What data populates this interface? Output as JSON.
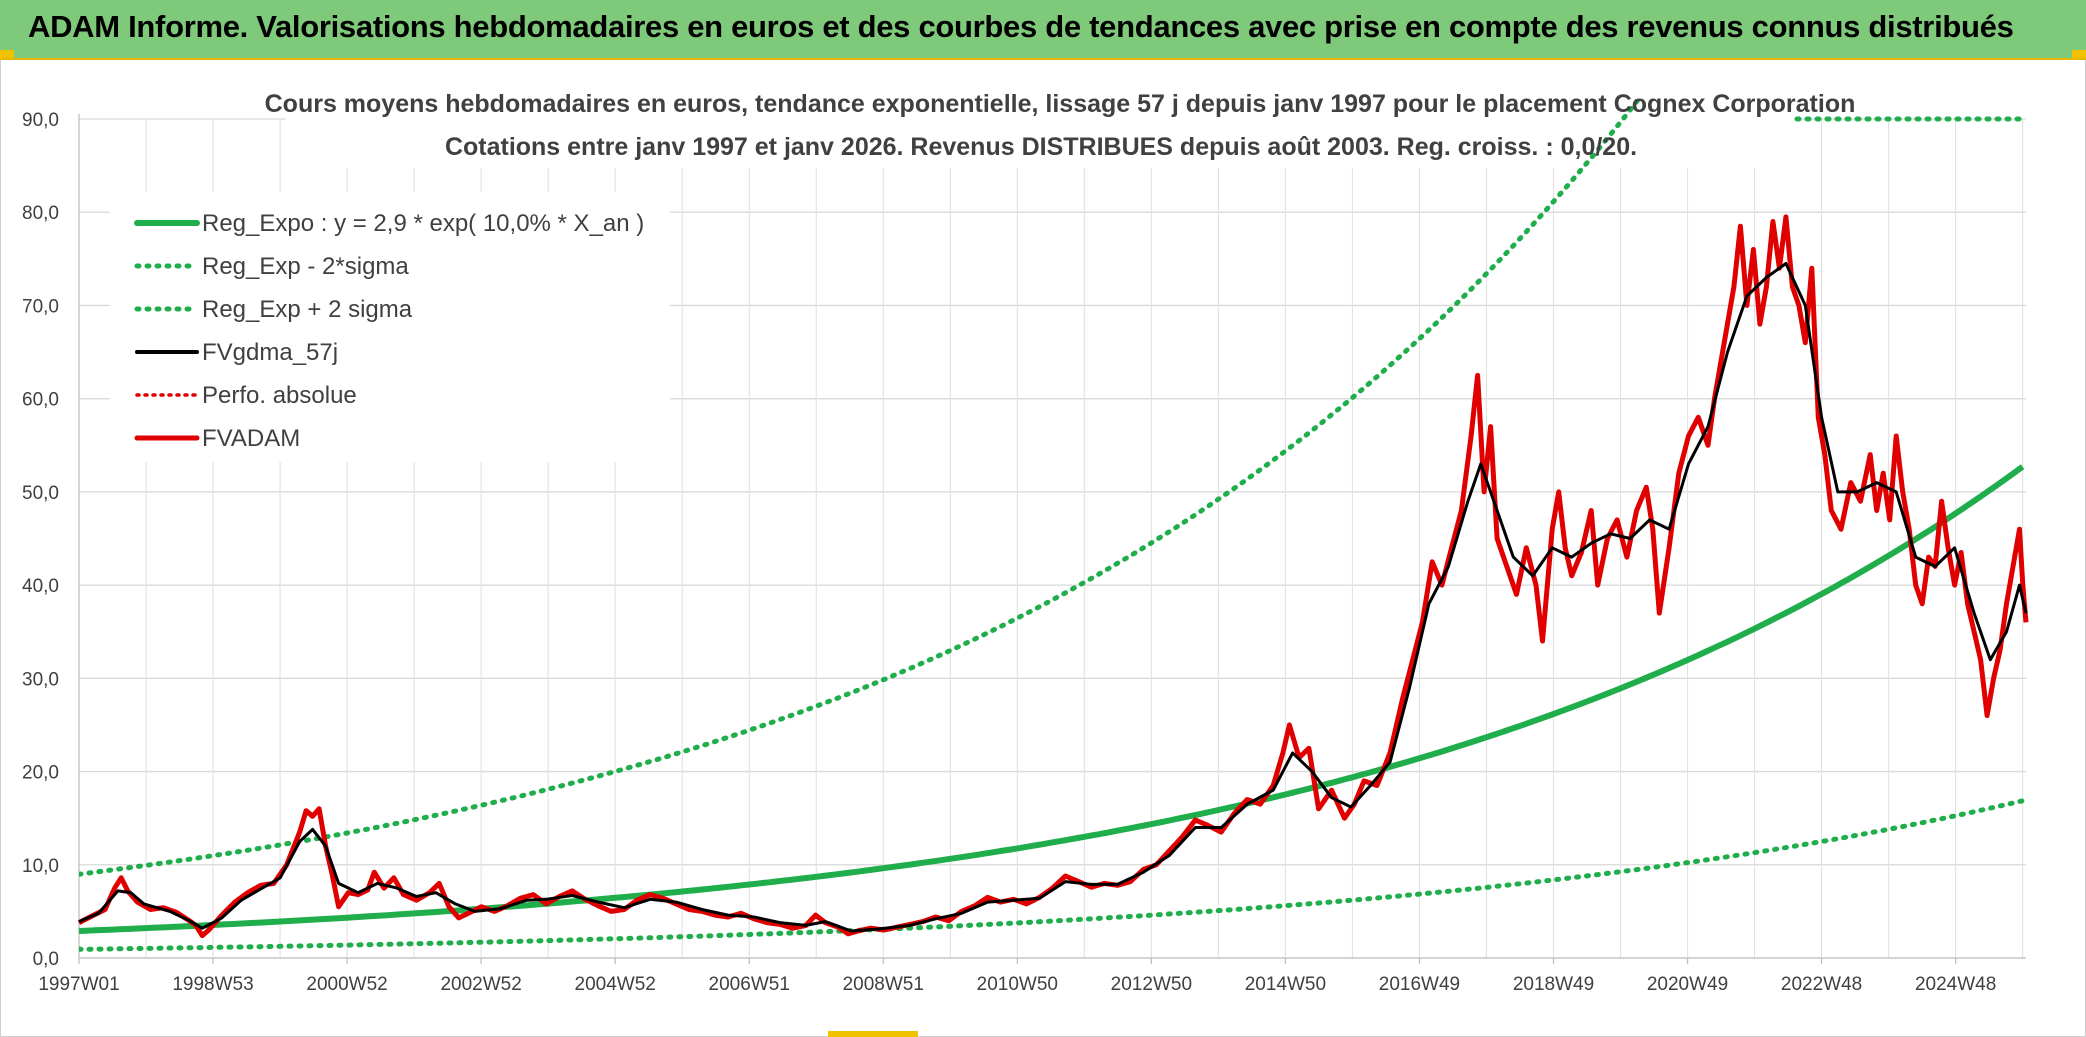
{
  "banner": {
    "title": "ADAM Informe. Valorisations hebdomadaires en euros et des courbes de tendances avec prise en compte des revenus connus distribués"
  },
  "chart_data": {
    "type": "line",
    "title_line1": "Cours moyens hebdomadaires en euros, tendance exponentielle, lissage 57 j depuis janv 1997 pour le placement Cognex Corporation",
    "title_line2": "Cotations entre janv 1997 et janv 2026. Revenus DISTRIBUES depuis août 2003. Reg. croiss. : 0,0/20.",
    "x_tick_labels": [
      "1997W01",
      "1998W53",
      "2000W52",
      "2002W52",
      "2004W52",
      "2006W51",
      "2008W51",
      "2010W50",
      "2012W50",
      "2014W50",
      "2016W49",
      "2018W49",
      "2020W49",
      "2022W48",
      "2024W48"
    ],
    "x_tick_years": [
      1997,
      1999,
      2001,
      2003,
      2005,
      2007,
      2009,
      2011,
      2013,
      2015,
      2017,
      2019,
      2021,
      2023,
      2025
    ],
    "xlim": [
      1997.0,
      2026.05
    ],
    "ylim": [
      0,
      90
    ],
    "y_ticks": [
      "0,0",
      "10,0",
      "20,0",
      "30,0",
      "40,0",
      "50,0",
      "60,0",
      "70,0",
      "80,0",
      "90,0"
    ],
    "y_tick_values": [
      0,
      10,
      20,
      30,
      40,
      50,
      60,
      70,
      80,
      90
    ],
    "grid": true,
    "legend_position": "top-left",
    "colors": {
      "reg": "#1fae4b",
      "band": "#1fae4b",
      "smooth": "#000000",
      "perfo": "#e00000",
      "adam": "#e00000"
    },
    "regression": {
      "a": 2.9,
      "rate": 0.1,
      "lower_factor": 0.32,
      "upper_factor": 3.1
    },
    "series": [
      {
        "name": "Reg_Expo : y = 2,9 * exp( 10,0% *  X_an )",
        "key": "reg",
        "style": "solid-thick"
      },
      {
        "name": "Reg_Exp - 2*sigma",
        "key": "lower",
        "style": "dotted-green"
      },
      {
        "name": "Reg_Exp + 2 sigma",
        "key": "upper",
        "style": "dotted-green"
      },
      {
        "name": "FVgdma_57j",
        "key": "smooth",
        "style": "solid-black"
      },
      {
        "name": "Perfo. absolue",
        "key": "perfo",
        "style": "dotted-red"
      },
      {
        "name": "FVADAM",
        "key": "adam",
        "style": "solid-red"
      }
    ],
    "fvadam": [
      [
        1997.0,
        3.8
      ],
      [
        1997.2,
        4.5
      ],
      [
        1997.4,
        5.2
      ],
      [
        1997.55,
        7.5
      ],
      [
        1997.65,
        8.6
      ],
      [
        1997.75,
        7.2
      ],
      [
        1997.9,
        6.0
      ],
      [
        1998.1,
        5.2
      ],
      [
        1998.3,
        5.4
      ],
      [
        1998.5,
        4.9
      ],
      [
        1998.7,
        4.0
      ],
      [
        1998.8,
        3.5
      ],
      [
        1998.9,
        2.4
      ],
      [
        1999.0,
        3.0
      ],
      [
        1999.2,
        4.6
      ],
      [
        1999.4,
        6.0
      ],
      [
        1999.6,
        7.0
      ],
      [
        1999.8,
        7.8
      ],
      [
        2000.0,
        8.0
      ],
      [
        2000.2,
        10.0
      ],
      [
        2000.4,
        13.5
      ],
      [
        2000.5,
        15.8
      ],
      [
        2000.6,
        15.2
      ],
      [
        2000.7,
        16.0
      ],
      [
        2000.8,
        12.0
      ],
      [
        2000.9,
        9.0
      ],
      [
        2001.0,
        5.5
      ],
      [
        2001.15,
        7.0
      ],
      [
        2001.3,
        6.8
      ],
      [
        2001.45,
        7.3
      ],
      [
        2001.55,
        9.2
      ],
      [
        2001.7,
        7.5
      ],
      [
        2001.85,
        8.6
      ],
      [
        2002.0,
        6.8
      ],
      [
        2002.2,
        6.2
      ],
      [
        2002.4,
        7.0
      ],
      [
        2002.55,
        8.0
      ],
      [
        2002.7,
        5.5
      ],
      [
        2002.85,
        4.3
      ],
      [
        2003.0,
        4.8
      ],
      [
        2003.2,
        5.5
      ],
      [
        2003.4,
        5.0
      ],
      [
        2003.6,
        5.6
      ],
      [
        2003.8,
        6.4
      ],
      [
        2004.0,
        6.8
      ],
      [
        2004.2,
        5.8
      ],
      [
        2004.4,
        6.6
      ],
      [
        2004.6,
        7.2
      ],
      [
        2004.8,
        6.3
      ],
      [
        2005.0,
        5.6
      ],
      [
        2005.2,
        5.0
      ],
      [
        2005.4,
        5.2
      ],
      [
        2005.6,
        6.2
      ],
      [
        2005.8,
        6.8
      ],
      [
        2006.0,
        6.4
      ],
      [
        2006.2,
        5.8
      ],
      [
        2006.4,
        5.2
      ],
      [
        2006.6,
        5.0
      ],
      [
        2006.8,
        4.6
      ],
      [
        2007.0,
        4.4
      ],
      [
        2007.2,
        4.8
      ],
      [
        2007.4,
        4.2
      ],
      [
        2007.6,
        3.8
      ],
      [
        2007.8,
        3.6
      ],
      [
        2008.0,
        3.2
      ],
      [
        2008.2,
        3.5
      ],
      [
        2008.35,
        4.6
      ],
      [
        2008.5,
        3.8
      ],
      [
        2008.7,
        3.3
      ],
      [
        2008.85,
        2.6
      ],
      [
        2009.0,
        2.9
      ],
      [
        2009.2,
        3.2
      ],
      [
        2009.4,
        3.0
      ],
      [
        2009.6,
        3.3
      ],
      [
        2009.8,
        3.6
      ],
      [
        2010.0,
        3.9
      ],
      [
        2010.2,
        4.4
      ],
      [
        2010.4,
        4.0
      ],
      [
        2010.6,
        5.0
      ],
      [
        2010.8,
        5.6
      ],
      [
        2011.0,
        6.5
      ],
      [
        2011.2,
        6.0
      ],
      [
        2011.4,
        6.3
      ],
      [
        2011.6,
        5.8
      ],
      [
        2011.8,
        6.5
      ],
      [
        2012.0,
        7.5
      ],
      [
        2012.2,
        8.8
      ],
      [
        2012.4,
        8.2
      ],
      [
        2012.6,
        7.6
      ],
      [
        2012.8,
        8.0
      ],
      [
        2013.0,
        7.8
      ],
      [
        2013.2,
        8.2
      ],
      [
        2013.4,
        9.5
      ],
      [
        2013.6,
        10.0
      ],
      [
        2013.8,
        11.5
      ],
      [
        2014.0,
        13.0
      ],
      [
        2014.2,
        14.8
      ],
      [
        2014.4,
        14.2
      ],
      [
        2014.6,
        13.5
      ],
      [
        2014.8,
        15.5
      ],
      [
        2015.0,
        17.0
      ],
      [
        2015.2,
        16.5
      ],
      [
        2015.4,
        18.5
      ],
      [
        2015.55,
        22.0
      ],
      [
        2015.65,
        25.0
      ],
      [
        2015.8,
        21.5
      ],
      [
        2015.95,
        22.5
      ],
      [
        2016.1,
        16.0
      ],
      [
        2016.3,
        18.0
      ],
      [
        2016.5,
        15.0
      ],
      [
        2016.65,
        16.5
      ],
      [
        2016.8,
        19.0
      ],
      [
        2017.0,
        18.5
      ],
      [
        2017.2,
        22.0
      ],
      [
        2017.4,
        28.0
      ],
      [
        2017.55,
        32.0
      ],
      [
        2017.7,
        36.0
      ],
      [
        2017.85,
        42.5
      ],
      [
        2018.0,
        40.0
      ],
      [
        2018.15,
        44.0
      ],
      [
        2018.3,
        48.0
      ],
      [
        2018.45,
        56.0
      ],
      [
        2018.55,
        62.5
      ],
      [
        2018.65,
        50.0
      ],
      [
        2018.75,
        57.0
      ],
      [
        2018.85,
        45.0
      ],
      [
        2019.0,
        42.0
      ],
      [
        2019.15,
        39.0
      ],
      [
        2019.3,
        44.0
      ],
      [
        2019.45,
        40.0
      ],
      [
        2019.55,
        34.0
      ],
      [
        2019.7,
        46.0
      ],
      [
        2019.8,
        50.0
      ],
      [
        2019.9,
        44.0
      ],
      [
        2020.0,
        41.0
      ],
      [
        2020.15,
        43.5
      ],
      [
        2020.3,
        48.0
      ],
      [
        2020.4,
        40.0
      ],
      [
        2020.55,
        45.0
      ],
      [
        2020.7,
        47.0
      ],
      [
        2020.85,
        43.0
      ],
      [
        2021.0,
        48.0
      ],
      [
        2021.15,
        50.5
      ],
      [
        2021.25,
        46.0
      ],
      [
        2021.35,
        37.0
      ],
      [
        2021.5,
        44.0
      ],
      [
        2021.65,
        52.0
      ],
      [
        2021.8,
        56.0
      ],
      [
        2021.95,
        58.0
      ],
      [
        2022.1,
        55.0
      ],
      [
        2022.2,
        60.0
      ],
      [
        2022.35,
        66.0
      ],
      [
        2022.5,
        72.0
      ],
      [
        2022.6,
        78.5
      ],
      [
        2022.7,
        70.0
      ],
      [
        2022.8,
        76.0
      ],
      [
        2022.9,
        68.0
      ],
      [
        2023.0,
        72.0
      ],
      [
        2023.1,
        79.0
      ],
      [
        2023.2,
        74.0
      ],
      [
        2023.3,
        79.5
      ],
      [
        2023.4,
        72.0
      ],
      [
        2023.5,
        70.0
      ],
      [
        2023.6,
        66.0
      ],
      [
        2023.7,
        74.0
      ],
      [
        2023.8,
        58.0
      ],
      [
        2023.9,
        54.0
      ],
      [
        2024.0,
        48.0
      ],
      [
        2024.15,
        46.0
      ],
      [
        2024.3,
        51.0
      ],
      [
        2024.45,
        49.0
      ],
      [
        2024.6,
        54.0
      ],
      [
        2024.7,
        48.0
      ],
      [
        2024.8,
        52.0
      ],
      [
        2024.9,
        47.0
      ],
      [
        2025.0,
        56.0
      ],
      [
        2025.1,
        50.0
      ],
      [
        2025.2,
        46.0
      ],
      [
        2025.3,
        40.0
      ],
      [
        2025.4,
        38.0
      ],
      [
        2025.5,
        43.0
      ],
      [
        2025.6,
        42.0
      ],
      [
        2025.7,
        49.0
      ],
      [
        2025.8,
        44.0
      ],
      [
        2025.9,
        40.0
      ],
      [
        2026.0,
        43.5
      ],
      [
        2026.1,
        38.0
      ],
      [
        2026.2,
        35.0
      ],
      [
        2026.3,
        32.0
      ],
      [
        2026.4,
        26.0
      ],
      [
        2026.5,
        30.0
      ],
      [
        2026.6,
        33.0
      ],
      [
        2026.7,
        38.0
      ],
      [
        2026.8,
        42.0
      ],
      [
        2026.9,
        46.0
      ],
      [
        2026.95,
        40.0
      ],
      [
        2027.0,
        36.0
      ]
    ],
    "fvgdma": [
      [
        1997.0,
        3.9
      ],
      [
        1997.3,
        4.8
      ],
      [
        1997.6,
        7.2
      ],
      [
        1997.8,
        7.0
      ],
      [
        1998.0,
        5.8
      ],
      [
        1998.4,
        5.0
      ],
      [
        1998.7,
        4.0
      ],
      [
        1998.9,
        3.2
      ],
      [
        1999.2,
        4.3
      ],
      [
        1999.5,
        6.2
      ],
      [
        1999.8,
        7.4
      ],
      [
        2000.1,
        8.6
      ],
      [
        2000.4,
        12.5
      ],
      [
        2000.6,
        13.8
      ],
      [
        2000.8,
        12.0
      ],
      [
        2001.0,
        8.0
      ],
      [
        2001.3,
        7.0
      ],
      [
        2001.6,
        8.0
      ],
      [
        2001.9,
        7.5
      ],
      [
        2002.2,
        6.6
      ],
      [
        2002.5,
        7.0
      ],
      [
        2002.8,
        5.8
      ],
      [
        2003.1,
        5.0
      ],
      [
        2003.5,
        5.3
      ],
      [
        2003.9,
        6.2
      ],
      [
        2004.2,
        6.3
      ],
      [
        2004.6,
        6.7
      ],
      [
        2005.0,
        6.0
      ],
      [
        2005.4,
        5.4
      ],
      [
        2005.8,
        6.3
      ],
      [
        2006.2,
        6.0
      ],
      [
        2006.6,
        5.2
      ],
      [
        2007.0,
        4.6
      ],
      [
        2007.4,
        4.4
      ],
      [
        2007.8,
        3.8
      ],
      [
        2008.2,
        3.5
      ],
      [
        2008.5,
        3.9
      ],
      [
        2008.9,
        2.9
      ],
      [
        2009.3,
        3.1
      ],
      [
        2009.8,
        3.5
      ],
      [
        2010.2,
        4.2
      ],
      [
        2010.6,
        4.8
      ],
      [
        2011.0,
        6.0
      ],
      [
        2011.4,
        6.2
      ],
      [
        2011.8,
        6.4
      ],
      [
        2012.2,
        8.2
      ],
      [
        2012.6,
        7.9
      ],
      [
        2013.0,
        7.9
      ],
      [
        2013.4,
        9.2
      ],
      [
        2013.8,
        11.0
      ],
      [
        2014.2,
        14.0
      ],
      [
        2014.6,
        14.0
      ],
      [
        2015.0,
        16.5
      ],
      [
        2015.4,
        18.0
      ],
      [
        2015.7,
        22.0
      ],
      [
        2016.0,
        20.0
      ],
      [
        2016.3,
        17.2
      ],
      [
        2016.6,
        16.2
      ],
      [
        2016.9,
        18.5
      ],
      [
        2017.2,
        21.0
      ],
      [
        2017.5,
        29.0
      ],
      [
        2017.8,
        38.0
      ],
      [
        2018.1,
        42.0
      ],
      [
        2018.4,
        49.0
      ],
      [
        2018.6,
        53.0
      ],
      [
        2018.85,
        48.0
      ],
      [
        2019.1,
        43.0
      ],
      [
        2019.4,
        41.0
      ],
      [
        2019.7,
        44.0
      ],
      [
        2020.0,
        43.0
      ],
      [
        2020.3,
        44.5
      ],
      [
        2020.6,
        45.5
      ],
      [
        2020.9,
        45.0
      ],
      [
        2021.2,
        47.0
      ],
      [
        2021.5,
        46.0
      ],
      [
        2021.8,
        53.0
      ],
      [
        2022.1,
        57.0
      ],
      [
        2022.4,
        65.0
      ],
      [
        2022.7,
        71.0
      ],
      [
        2023.0,
        73.0
      ],
      [
        2023.3,
        74.5
      ],
      [
        2023.6,
        70.0
      ],
      [
        2023.85,
        58.0
      ],
      [
        2024.1,
        50.0
      ],
      [
        2024.4,
        50.0
      ],
      [
        2024.7,
        51.0
      ],
      [
        2025.0,
        50.0
      ],
      [
        2025.3,
        43.0
      ],
      [
        2025.6,
        42.0
      ],
      [
        2025.9,
        44.0
      ],
      [
        2026.2,
        37.0
      ],
      [
        2026.45,
        32.0
      ],
      [
        2026.7,
        35.0
      ],
      [
        2026.9,
        40.0
      ],
      [
        2027.0,
        37.0
      ]
    ]
  }
}
